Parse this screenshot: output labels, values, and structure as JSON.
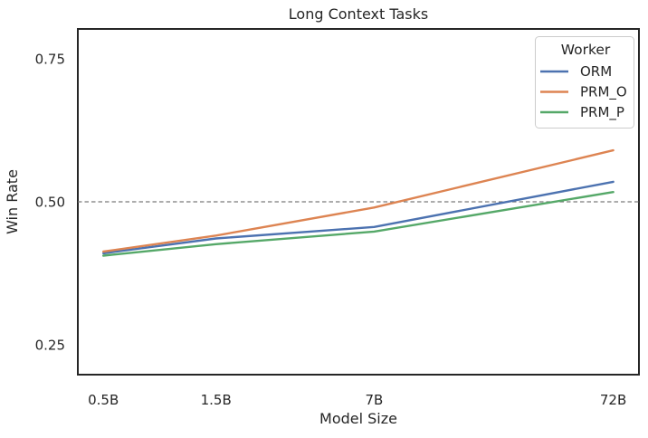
{
  "chart_data": {
    "type": "line",
    "title": "Long Context Tasks",
    "xlabel": "Model Size",
    "ylabel": "Win Rate",
    "x_scale": "log",
    "x": [
      0.5,
      1.5,
      7,
      72
    ],
    "x_tick_labels": [
      "0.5B",
      "1.5B",
      "7B",
      "72B"
    ],
    "xlim": [
      0.39,
      92.5
    ],
    "ylim": [
      0.198,
      0.802
    ],
    "yticks": [
      0.25,
      0.5,
      0.75
    ],
    "ytick_labels": [
      "0.25",
      "0.50",
      "0.75"
    ],
    "grid": false,
    "reference_line_y": 0.5,
    "reference_line_style": "dashed",
    "reference_line_color": "#7a7a7a",
    "axis_color": "#262626",
    "background_color": "#ffffff",
    "legend": {
      "title": "Worker",
      "position": "upper right"
    },
    "series": [
      {
        "name": "ORM",
        "color": "#4C72B0",
        "values": [
          0.41,
          0.436,
          0.456,
          0.535
        ]
      },
      {
        "name": "PRM_O",
        "color": "#DD8452",
        "values": [
          0.413,
          0.441,
          0.49,
          0.59
        ]
      },
      {
        "name": "PRM_P",
        "color": "#55A868",
        "values": [
          0.406,
          0.426,
          0.448,
          0.517
        ]
      }
    ]
  }
}
